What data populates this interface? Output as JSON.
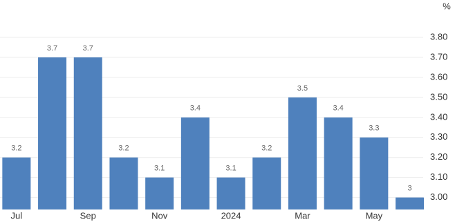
{
  "chart_data": {
    "type": "bar",
    "unit": "%",
    "categories": [
      "Jul",
      null,
      "Sep",
      null,
      "Nov",
      null,
      "2024",
      null,
      "Mar",
      null,
      "May",
      null
    ],
    "values": [
      3.2,
      3.7,
      3.7,
      3.2,
      3.1,
      3.4,
      3.1,
      3.2,
      3.5,
      3.4,
      3.3,
      3
    ],
    "color": "#4f81bd",
    "ylim": [
      2.94,
      3.89
    ],
    "yticks": [
      {
        "value": 3.0,
        "label": "3.00"
      },
      {
        "value": 3.1,
        "label": "3.10"
      },
      {
        "value": 3.2,
        "label": "3.20"
      },
      {
        "value": 3.3,
        "label": "3.30"
      },
      {
        "value": 3.4,
        "label": "3.40"
      },
      {
        "value": 3.5,
        "label": "3.50"
      },
      {
        "value": 3.6,
        "label": "3.60"
      },
      {
        "value": 3.7,
        "label": "3.70"
      },
      {
        "value": 3.8,
        "label": "3.80"
      }
    ],
    "grid": true
  }
}
